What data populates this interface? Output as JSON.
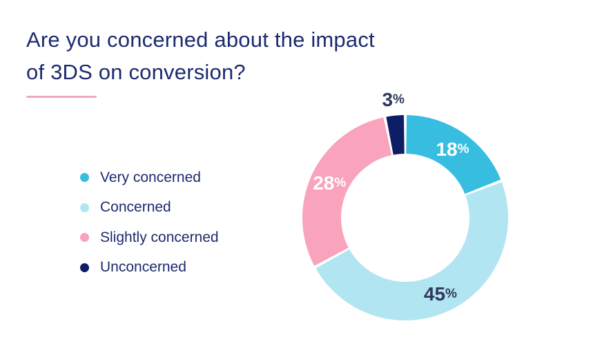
{
  "chart_data": {
    "type": "pie",
    "variant": "donut",
    "title": "Are you concerned about the impact of 3DS on conversion?",
    "title_lines": [
      "Are you concerned about the impact",
      "of 3DS on conversion?"
    ],
    "categories": [
      "Very concerned",
      "Concerned",
      "Slightly concerned",
      "Unconcerned"
    ],
    "values": [
      18,
      45,
      28,
      3
    ],
    "value_labels": [
      "18",
      "45",
      "28",
      "3"
    ],
    "unit": "%",
    "colors": [
      "#36bde0",
      "#b2e5f2",
      "#f9a3bd",
      "#0d1d66"
    ],
    "label_colors": [
      "#ffffff",
      "#2f3a5c",
      "#ffffff",
      "#2f3a5c"
    ],
    "legend_position": "left"
  },
  "accent_color": "#f4a6c0"
}
